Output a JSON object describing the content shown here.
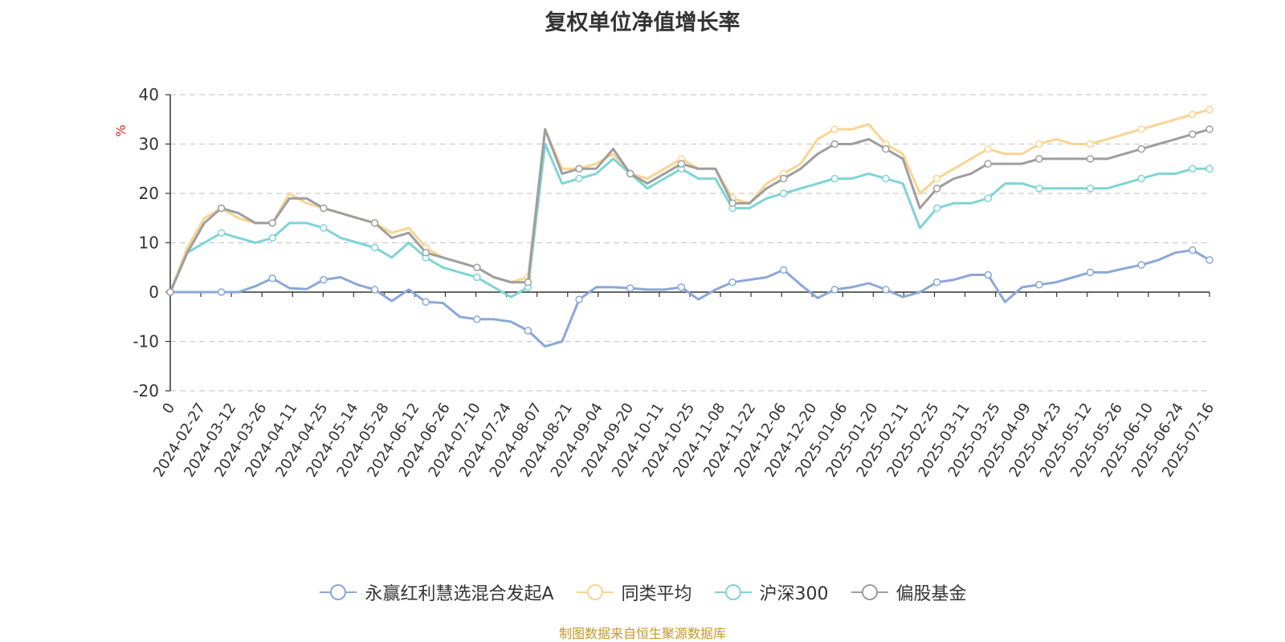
{
  "title": "复权单位净值增长率",
  "source_note": "制图数据来自恒生聚源数据库",
  "chart_data": {
    "type": "line",
    "title": "复权单位净值增长率",
    "ylabel": "%",
    "ylim": [
      -20,
      40
    ],
    "yticks": [
      "-20",
      "-10",
      "0",
      "10",
      "20",
      "30",
      "40"
    ],
    "grid": true,
    "legend_position": "bottom",
    "x_tick_labels": [
      "0",
      "2024-02-27",
      "2024-03-12",
      "2024-03-26",
      "2024-04-11",
      "2024-04-25",
      "2024-05-14",
      "2024-05-28",
      "2024-06-12",
      "2024-06-26",
      "2024-07-10",
      "2024-07-24",
      "2024-08-07",
      "2024-08-21",
      "2024-09-04",
      "2024-09-20",
      "2024-10-11",
      "2024-10-25",
      "2024-11-08",
      "2024-11-22",
      "2024-12-06",
      "2024-12-20",
      "2025-01-06",
      "2025-01-20",
      "2025-02-11",
      "2025-02-25",
      "2025-03-11",
      "2025-03-25",
      "2025-04-09",
      "2025-04-23",
      "2025-05-12",
      "2025-05-26",
      "2025-06-10",
      "2025-06-24",
      "2025-07-16"
    ],
    "series": [
      {
        "name": "永赢红利慧选混合发起A",
        "color": "#8aa8d8",
        "values": [
          0,
          0,
          0,
          0,
          0,
          1.2,
          2.8,
          0.8,
          0.6,
          2.5,
          3.0,
          1.5,
          0.5,
          -1.8,
          0.5,
          -2.0,
          -2.2,
          -5.0,
          -5.5,
          -5.5,
          -6.0,
          -7.8,
          -11.0,
          -10.0,
          -1.5,
          1.0,
          1.0,
          0.8,
          0.5,
          0.5,
          1.0,
          -1.5,
          0.5,
          2.0,
          2.5,
          3.0,
          4.5,
          1.5,
          -1.2,
          0.5,
          1.0,
          1.8,
          0.5,
          -1.0,
          0.0,
          2.0,
          2.5,
          3.5,
          3.5,
          -2.0,
          1.0,
          1.5,
          2.0,
          3.0,
          4.0,
          4.0,
          4.8,
          5.5,
          6.5,
          8.0,
          8.5,
          6.5
        ]
      },
      {
        "name": "同类平均",
        "color": "#f9d492",
        "values": [
          0,
          9,
          15,
          17,
          15,
          14,
          14,
          20,
          18,
          17,
          16,
          15,
          14,
          12,
          13,
          9,
          7,
          6,
          5,
          3,
          2,
          3,
          33,
          25,
          25,
          26,
          28,
          24,
          23,
          25,
          27,
          25,
          25,
          19,
          18,
          22,
          24,
          26,
          31,
          33,
          33,
          34,
          30,
          28,
          20,
          23,
          25,
          27,
          29,
          28,
          28,
          30,
          31,
          30,
          30,
          31,
          32,
          33,
          34,
          35,
          36,
          37
        ]
      },
      {
        "name": "沪深300",
        "color": "#7fd4d6",
        "values": [
          0,
          8,
          10,
          12,
          11,
          10,
          11,
          14,
          14,
          13,
          11,
          10,
          9,
          7,
          10,
          7,
          5,
          4,
          3,
          1,
          -1,
          1,
          30,
          22,
          23,
          24,
          27,
          24,
          21,
          23,
          25,
          23,
          23,
          17,
          17,
          19,
          20,
          21,
          22,
          23,
          23,
          24,
          23,
          22,
          13,
          17,
          18,
          18,
          19,
          22,
          22,
          21,
          21,
          21,
          21,
          21,
          22,
          23,
          24,
          24,
          25,
          25
        ]
      },
      {
        "name": "偏股基金",
        "color": "#9e9e9e",
        "values": [
          0,
          8,
          14,
          17,
          16,
          14,
          14,
          19,
          19,
          17,
          16,
          15,
          14,
          11,
          12,
          8,
          7,
          6,
          5,
          3,
          2,
          2,
          33,
          24,
          25,
          25,
          29,
          24,
          22,
          24,
          26,
          25,
          25,
          18,
          18,
          21,
          23,
          25,
          28,
          30,
          30,
          31,
          29,
          27,
          17,
          21,
          23,
          24,
          26,
          26,
          26,
          27,
          27,
          27,
          27,
          27,
          28,
          29,
          30,
          31,
          32,
          33
        ]
      }
    ]
  }
}
